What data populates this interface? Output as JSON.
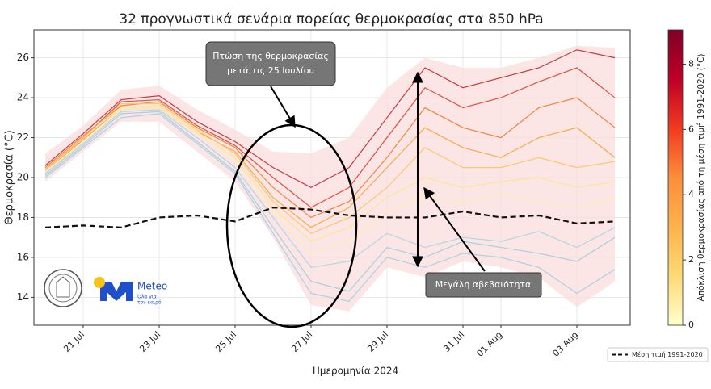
{
  "chart_data": {
    "type": "line",
    "title": "32 προγνωστικά σενάρια πορείας θερμοκρασίας στα 850 hPa",
    "xlabel": "Ημερομηνία 2024",
    "ylabel": "Θερμοκρασία (°C)",
    "x": [
      null,
      "21 Jul",
      null,
      "23 Jul",
      null,
      "25 Jul",
      null,
      "27 Jul",
      null,
      "29 Jul",
      null,
      "31 Jul",
      "01 Aug",
      null,
      "03 Aug",
      null
    ],
    "ylim": [
      12.6,
      27.4
    ],
    "yticks": [
      14,
      16,
      18,
      20,
      22,
      24,
      26
    ],
    "grid": true,
    "band": {
      "color": "#fbdcdc",
      "upper": [
        21.2,
        22.6,
        24.4,
        24.6,
        23.4,
        22.4,
        21.3,
        21.2,
        22.0,
        24.5,
        26.0,
        25.5,
        25.5,
        26.0,
        26.6,
        26.5
      ],
      "lower": [
        19.8,
        21.3,
        22.8,
        22.8,
        21.3,
        19.8,
        17.0,
        13.6,
        13.3,
        15.5,
        15.0,
        15.8,
        15.5,
        15.0,
        13.5,
        14.8
      ]
    },
    "series": [
      {
        "color": "#c0272d",
        "values": [
          20.6,
          22.2,
          23.9,
          24.1,
          22.8,
          21.8,
          20.5,
          19.5,
          20.5,
          23.0,
          25.5,
          24.5,
          25.0,
          25.5,
          26.4,
          26.0
        ]
      },
      {
        "color": "#d94030",
        "values": [
          20.4,
          22.0,
          23.8,
          23.9,
          22.6,
          21.6,
          20.0,
          18.5,
          19.5,
          22.0,
          24.5,
          23.5,
          24.0,
          24.8,
          25.5,
          24.0
        ]
      },
      {
        "color": "#ec7a2c",
        "values": [
          20.5,
          22.1,
          23.6,
          23.8,
          22.5,
          21.5,
          19.5,
          18.0,
          18.8,
          21.0,
          23.5,
          22.5,
          22.0,
          23.5,
          24.0,
          22.5
        ]
      },
      {
        "color": "#f5a33a",
        "values": [
          20.3,
          21.9,
          23.5,
          23.6,
          22.3,
          21.3,
          19.0,
          17.5,
          18.5,
          20.5,
          22.5,
          21.5,
          21.0,
          22.0,
          22.5,
          21.0
        ]
      },
      {
        "color": "#f9c75a",
        "values": [
          20.4,
          22.0,
          23.7,
          23.7,
          22.4,
          21.2,
          18.8,
          17.2,
          18.0,
          19.5,
          21.5,
          20.5,
          20.5,
          21.0,
          20.5,
          20.8
        ]
      },
      {
        "color": "#fde58a",
        "values": [
          20.2,
          21.8,
          23.4,
          23.5,
          22.2,
          21.0,
          18.5,
          16.8,
          17.5,
          19.0,
          20.0,
          19.5,
          19.8,
          20.0,
          19.5,
          19.8
        ]
      },
      {
        "color": "#fff0b0",
        "values": [
          20.3,
          21.8,
          23.5,
          23.6,
          22.3,
          20.8,
          18.3,
          16.2,
          16.8,
          18.3,
          19.0,
          18.8,
          19.2,
          18.8,
          18.5,
          19.0
        ]
      },
      {
        "color": "#a9d4e6",
        "values": [
          20.2,
          21.7,
          23.3,
          23.4,
          22.0,
          20.5,
          18.0,
          15.5,
          15.8,
          17.2,
          16.5,
          17.0,
          16.8,
          17.3,
          16.5,
          17.5
        ]
      },
      {
        "color": "#9ccde3",
        "values": [
          20.1,
          21.6,
          23.2,
          23.3,
          21.8,
          20.3,
          17.5,
          14.8,
          14.3,
          16.5,
          16.0,
          16.8,
          16.5,
          16.2,
          15.8,
          17.0
        ]
      },
      {
        "color": "#a0cfe4",
        "values": [
          20.0,
          21.5,
          23.0,
          23.2,
          21.7,
          20.2,
          17.2,
          14.2,
          13.8,
          16.0,
          15.5,
          16.2,
          16.0,
          15.5,
          14.2,
          15.4
        ]
      },
      {
        "name": "Μέση τιμή 1991-2020",
        "color": "#111111",
        "dash": true,
        "values": [
          17.5,
          17.6,
          17.5,
          18.0,
          18.1,
          17.8,
          18.5,
          18.4,
          18.1,
          18.0,
          18.0,
          18.3,
          18.0,
          18.1,
          17.7,
          17.8
        ]
      }
    ],
    "colorbar": {
      "label": "Απόκλιση θερμοκρασίας από τη μέση τιμή 1991-2020 (°C)",
      "clim": [
        0,
        9.05
      ],
      "cticks": [
        0,
        2,
        4,
        6,
        8
      ],
      "colormap": [
        "#ffffcc",
        "#fed976",
        "#feb24c",
        "#fd8d3c",
        "#f03b20",
        "#bd0026",
        "#800026"
      ]
    },
    "annotations": [
      {
        "lines": [
          "Πτώση της θερμοκρασίας",
          "μετά τις 25 Ιουλίου"
        ]
      },
      {
        "lines": [
          "Μεγάλη αβεβαιότητα"
        ]
      }
    ],
    "logo": {
      "name": "Meteo",
      "tagline": [
        "Όλα για",
        "τον καιρό"
      ]
    }
  }
}
